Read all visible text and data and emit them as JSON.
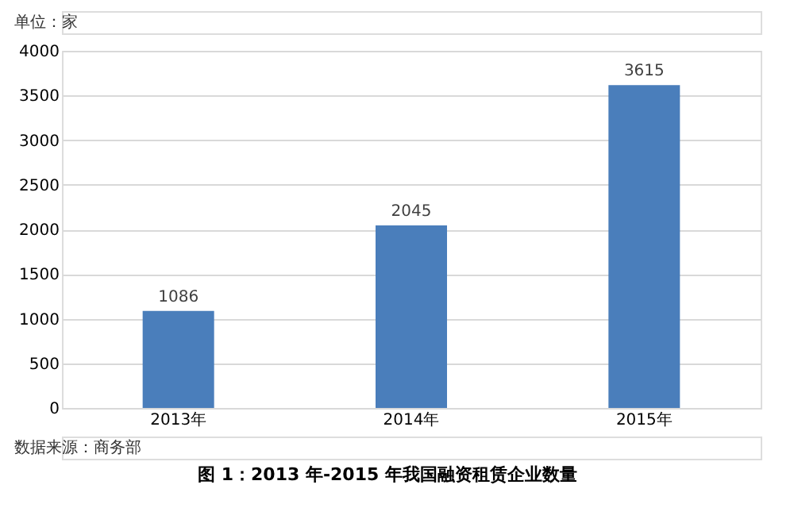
{
  "chart_data": {
    "type": "bar",
    "title": "图 1：2013 年-2015 年我国融资租赁企业数量",
    "categories": [
      "2013年",
      "2014年",
      "2015年"
    ],
    "values": [
      1086,
      2045,
      3615
    ],
    "color": "#4a7ebb",
    "ylim": [
      0,
      4000
    ],
    "yticks": [
      0,
      500,
      1000,
      1500,
      2000,
      2500,
      3000,
      3500,
      4000
    ],
    "grid": "y",
    "data_labels": true,
    "annotations": [
      "单位：家",
      "数据来源：商务部"
    ]
  }
}
